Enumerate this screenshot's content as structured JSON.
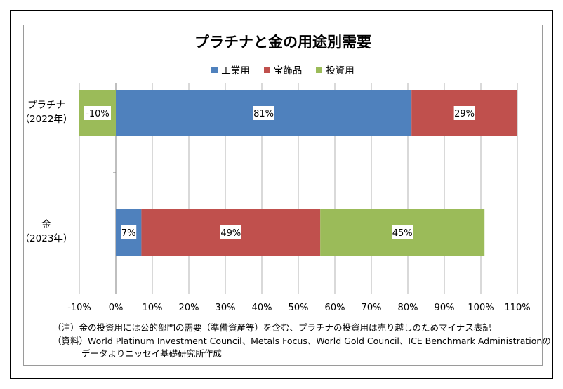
{
  "chart_data": {
    "type": "bar",
    "orientation": "horizontal",
    "stacked": true,
    "title": "プラチナと金の用途別需要",
    "categories": [
      {
        "name": "プラチナ",
        "sub": "（2022年）"
      },
      {
        "name": "金",
        "sub": "（2023年）"
      }
    ],
    "series": [
      {
        "name": "工業用",
        "color": "#4f81bd",
        "values": [
          81,
          7
        ]
      },
      {
        "name": "宝飾品",
        "color": "#c0504d",
        "values": [
          29,
          49
        ]
      },
      {
        "name": "投資用",
        "color": "#9bbb59",
        "values": [
          -10,
          45
        ]
      }
    ],
    "value_labels": [
      [
        "81%",
        "7%"
      ],
      [
        "29%",
        "49%"
      ],
      [
        "-10%",
        "45%"
      ]
    ],
    "xlim": [
      -10,
      110
    ],
    "xticks": [
      "-10%",
      "0%",
      "10%",
      "20%",
      "30%",
      "40%",
      "50%",
      "60%",
      "70%",
      "80%",
      "90%",
      "100%",
      "110%"
    ],
    "legend_position": "top",
    "grid": true
  },
  "notes": {
    "line1": "（注）金の投資用には公的部門の需要（準備資産等）を含む、プラチナの投資用は売り越しのためマイナス表記",
    "line2": "（資料）World Platinum Investment Council、Metals Focus、World Gold Council、ICE Benchmark Administrationの",
    "line3": "データよりニッセイ基礎研究所作成"
  }
}
